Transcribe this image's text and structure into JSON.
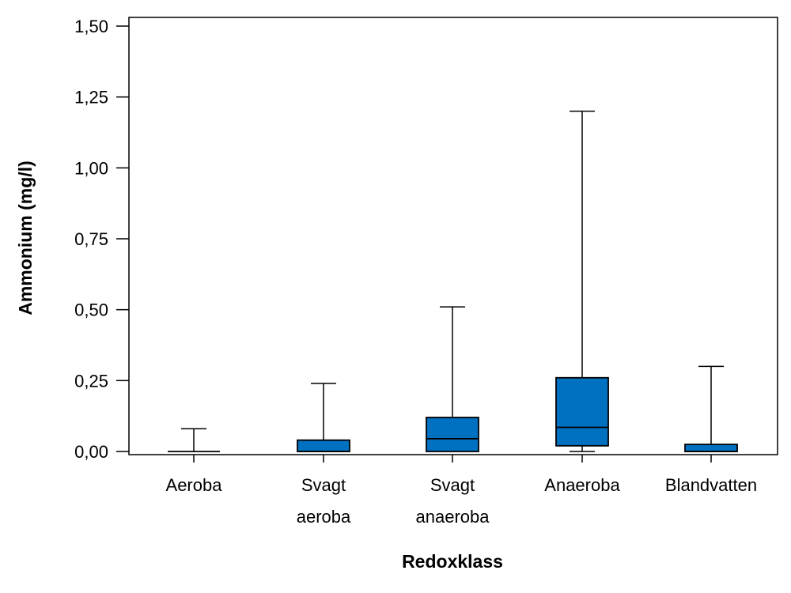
{
  "chart_data": {
    "type": "boxplot",
    "title": "",
    "xlabel": "Redoxklass",
    "ylabel": "Ammonium (mg/l)",
    "ylim": [
      0,
      1.5
    ],
    "yticks": [
      "0,00",
      "0,25",
      "0,50",
      "0,75",
      "1,00",
      "1,25",
      "1,50"
    ],
    "ytick_values": [
      0,
      0.25,
      0.5,
      0.75,
      1.0,
      1.25,
      1.5
    ],
    "categories": [
      [
        "Aeroba"
      ],
      [
        "Svagt",
        "aeroba"
      ],
      [
        "Svagt",
        "anaeroba"
      ],
      [
        "Anaeroba"
      ],
      [
        "Blandvatten"
      ]
    ],
    "boxes": [
      {
        "name": "Aeroba",
        "whisker_low": 0.0,
        "q1": 0.0,
        "median": 0.0,
        "q3": 0.0,
        "whisker_high": 0.08
      },
      {
        "name": "Svagt aeroba",
        "whisker_low": 0.0,
        "q1": 0.0,
        "median": 0.0,
        "q3": 0.04,
        "whisker_high": 0.24
      },
      {
        "name": "Svagt anaeroba",
        "whisker_low": 0.0,
        "q1": 0.0,
        "median": 0.045,
        "q3": 0.12,
        "whisker_high": 0.51
      },
      {
        "name": "Anaeroba",
        "whisker_low": 0.0,
        "q1": 0.02,
        "median": 0.085,
        "q3": 0.26,
        "whisker_high": 1.2
      },
      {
        "name": "Blandvatten",
        "whisker_low": 0.0,
        "q1": 0.0,
        "median": 0.0,
        "q3": 0.025,
        "whisker_high": 0.3
      }
    ],
    "colors": {
      "box_fill": "#0070C0",
      "line": "#000000",
      "background": "#ffffff"
    }
  }
}
